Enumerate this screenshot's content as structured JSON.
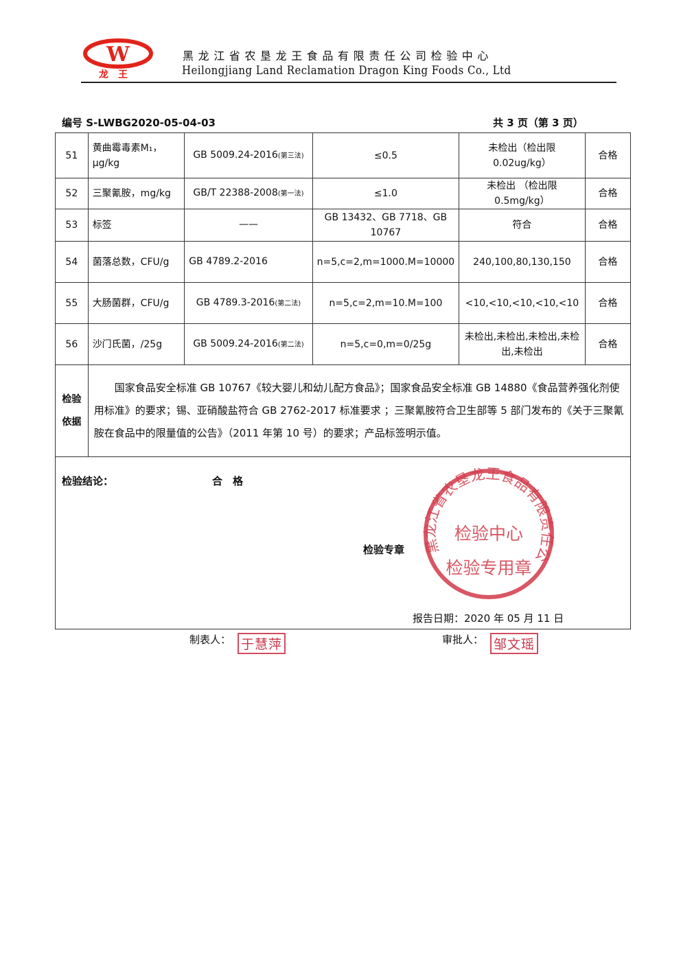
{
  "header": {
    "logo_text": "龙 王",
    "logo_mark": "W",
    "company_cn": "黑龙江省农垦龙王食品有限责任公司检验中心",
    "company_en": "Heilongjiang Land Reclamation Dragon King Foods Co., Ltd",
    "brand_color": "#e2231a"
  },
  "doc_no": "编号 S-LWBG2020-05-04-03",
  "page_count": "共 3 页（第 3 页）",
  "rows": [
    {
      "no": "51",
      "item": "黄曲霉毒素M₁，μg/kg",
      "method": "GB 5009.24-2016",
      "method_note": "(第三法)",
      "standard": "≤0.5",
      "result": "未检出（检出限0.02ug/kg）",
      "verdict": "合格"
    },
    {
      "no": "52",
      "item": "三聚氰胺，mg/kg",
      "method": "GB/T 22388-2008",
      "method_note": "(第一法)",
      "standard": "≤1.0",
      "result": "未检出 （检出限0.5mg/kg）",
      "verdict": "合格"
    },
    {
      "no": "53",
      "item": "标签",
      "method": "——",
      "method_note": "",
      "standard": "GB 13432、GB 7718、GB 10767",
      "result": "符合",
      "verdict": "合格"
    },
    {
      "no": "54",
      "item": "菌落总数，CFU/g",
      "method": "GB 4789.2-2016",
      "method_note": "",
      "standard": "n=5,c=2,m=1000.M=10000",
      "result": "240,100,80,130,150",
      "verdict": "合格"
    },
    {
      "no": "55",
      "item": "大肠菌群，CFU/g",
      "method": "GB 4789.3-2016",
      "method_note": "(第二法)",
      "standard": "n=5,c=2,m=10.M=100",
      "result": "<10,<10,<10,<10,<10",
      "verdict": "合格"
    },
    {
      "no": "56",
      "item": "沙门氏菌，/25g",
      "method": "GB 5009.24-2016",
      "method_note": "(第二法)",
      "standard": "n=5,c=0,m=0/25g",
      "result": "未检出,未检出,未检出,未检出,未检出",
      "verdict": "合格"
    }
  ],
  "basis": {
    "label": "检验依据",
    "text": "国家食品安全标准 GB 10767《较大婴儿和幼儿配方食品》；国家食品安全标准 GB 14880《食品营养强化剂使用标准》的要求；锡、亚硝酸盐符合 GB 2762-2017 标准要求 ；三聚氰胺符合卫生部等 5 部门发布的《关于三聚氰胺在食品中的限量值的公告》（2011 年第 10 号）的要求；产品标签明示值。"
  },
  "conclusion": {
    "label": "检验结论：",
    "value": "合　格",
    "seal_label": "检验专章",
    "report_date": "报告日期：2020 年 05 月 11 日"
  },
  "stamp": {
    "ring_text": "黑龙江省农垦龙王食品有限责任公司",
    "center1": "检验中心",
    "center2": "检验专用章",
    "color": "#d23a4a"
  },
  "signatures": {
    "maker_label": "制表人：",
    "maker": "于慧萍",
    "approver_label": "审批人：",
    "approver": "邹文瑶"
  }
}
